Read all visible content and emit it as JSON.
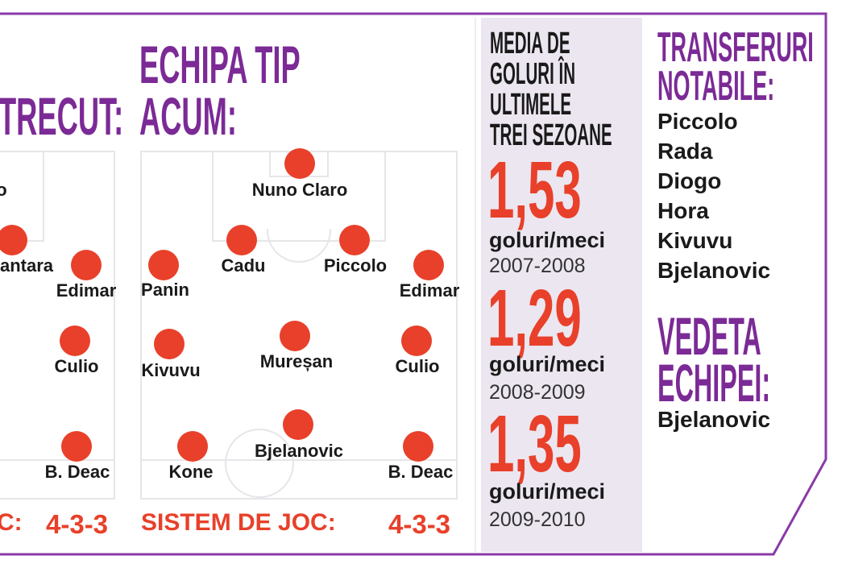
{
  "colors": {
    "purple": "#7b2a96",
    "red": "#e8402a",
    "panel": "#ece6f0"
  },
  "previous_team": {
    "title_partial": "TRECUT:",
    "players": [
      "o",
      "antara",
      "Edimar",
      "Culio",
      "B. Deac"
    ],
    "system_label_partial": "C:",
    "system_value": "4-3-3"
  },
  "current_team": {
    "title_line1": "ECHIPA TIP",
    "title_line2": "ACUM:",
    "players": [
      "Nuno Claro",
      "Cadu",
      "Piccolo",
      "Panin",
      "Edimar",
      "Kivuvu",
      "Mureșan",
      "Culio",
      "Bjelanovic",
      "Kone",
      "B. Deac"
    ],
    "system_label": "SISTEM DE JOC:",
    "system_value": "4-3-3"
  },
  "goals": {
    "title_lines": [
      "MEDIA DE",
      "GOLURI ÎN",
      "ULTIMELE",
      "TREI SEZOANE"
    ],
    "seasons": [
      {
        "value": "1,53",
        "unit": "goluri/meci",
        "season": "2007-2008"
      },
      {
        "value": "1,29",
        "unit": "goluri/meci",
        "season": "2008-2009"
      },
      {
        "value": "1,35",
        "unit": "goluri/meci",
        "season": "2009-2010"
      }
    ]
  },
  "transfers": {
    "title_line1": "TRANSFERURI",
    "title_line2": "NOTABILE:",
    "items": [
      "Piccolo",
      "Rada",
      "Diogo",
      "Hora",
      "Kivuvu",
      "Bjelanovic"
    ]
  },
  "star": {
    "title_line1": "VEDETA",
    "title_line2": "ECHIPEI:",
    "name": "Bjelanovic"
  }
}
